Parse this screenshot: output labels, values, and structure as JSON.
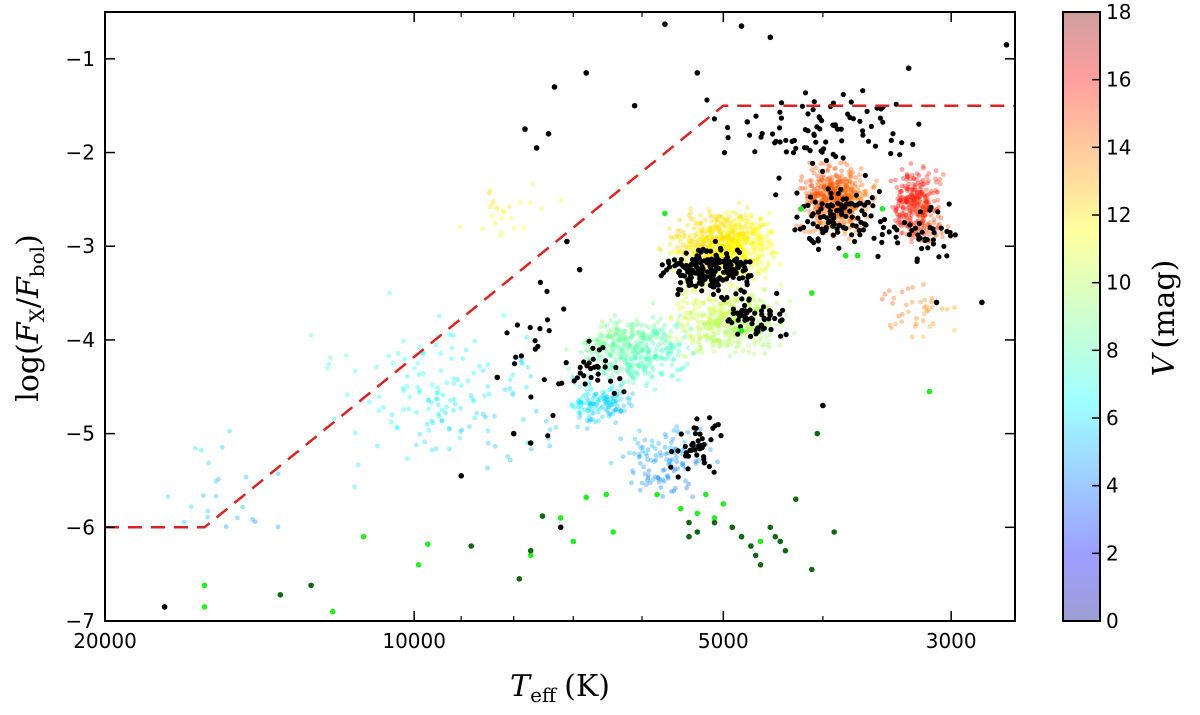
{
  "chart_data": {
    "type": "scatter",
    "title": "",
    "xlabel": {
      "main": "T",
      "sub": "eff",
      "unit": "(K)"
    },
    "ylabel": {
      "prefix": "log(",
      "a": "F",
      "a_sub": "X",
      "slash": "/",
      "b": "F",
      "b_sub": "bol",
      "suffix": ")"
    },
    "x_scale": "log-reversed",
    "xlim": [
      20000,
      2600
    ],
    "ylim": [
      -7,
      -0.5
    ],
    "x_ticks": [
      20000,
      10000,
      5000,
      3000
    ],
    "x_tick_labels": [
      "20000",
      "10000",
      "5000",
      "3000"
    ],
    "y_ticks": [
      -1,
      -2,
      -3,
      -4,
      -5,
      -6,
      -7
    ],
    "y_tick_labels": [
      "−1",
      "−2",
      "−3",
      "−4",
      "−5",
      "−6",
      "−7"
    ],
    "grid": false,
    "colorbar": {
      "label": {
        "main": "V",
        "unit": "(mag)"
      },
      "range": [
        0,
        18
      ],
      "ticks": [
        0,
        2,
        4,
        6,
        8,
        10,
        12,
        14,
        16,
        18
      ],
      "tick_labels": [
        "0",
        "2",
        "4",
        "6",
        "8",
        "10",
        "12",
        "14",
        "16",
        "18"
      ],
      "colormap": "jet"
    },
    "saturation_line": {
      "style": "dashed",
      "color": "#dd2222",
      "points": [
        [
          20000,
          -6
        ],
        [
          16000,
          -6
        ],
        [
          5000,
          -1.5
        ],
        [
          2600,
          -1.5
        ]
      ]
    },
    "series": [
      {
        "style": "colored-by-V",
        "clusters": [
          {
            "x": [
              3000,
              3500
            ],
            "y": [
              -3.1,
              -2.0
            ],
            "V": [
              14,
              16.5
            ],
            "count": 300
          },
          {
            "x": [
              3500,
              4300
            ],
            "y": [
              -3.0,
              -2.0
            ],
            "V": [
              13,
              15
            ],
            "count": 520
          },
          {
            "x": [
              4300,
              5800
            ],
            "y": [
              -3.5,
              -2.5
            ],
            "V": [
              10.5,
              12.5
            ],
            "count": 750
          },
          {
            "x": [
              4200,
              5800
            ],
            "y": [
              -4.3,
              -3.3
            ],
            "V": [
              9,
              11
            ],
            "count": 380
          },
          {
            "x": [
              5200,
              7200
            ],
            "y": [
              -4.6,
              -3.6
            ],
            "V": [
              7,
              9.5
            ],
            "count": 380
          },
          {
            "x": [
              6000,
              7200
            ],
            "y": [
              -5.0,
              -4.4
            ],
            "V": [
              5,
              7
            ],
            "count": 130
          },
          {
            "x": [
              5000,
              6500
            ],
            "y": [
              -5.8,
              -4.8
            ],
            "V": [
              3.5,
              6
            ],
            "count": 110
          },
          {
            "x": [
              6800,
              13000
            ],
            "y": [
              -5.8,
              -3.4
            ],
            "V": [
              4.5,
              8.5
            ],
            "count": 150
          },
          {
            "x": [
              13000,
              18000
            ],
            "y": [
              -6.4,
              -4.8
            ],
            "V": [
              4,
              7
            ],
            "count": 22
          },
          {
            "x": [
              7000,
              9500
            ],
            "y": [
              -3.0,
              -2.2
            ],
            "V": [
              10,
              13
            ],
            "count": 25
          },
          {
            "x": [
              2900,
              3600
            ],
            "y": [
              -4.2,
              -3.2
            ],
            "V": [
              12,
              15
            ],
            "count": 40
          }
        ]
      },
      {
        "style": "black",
        "color": "#000000",
        "clusters": [
          {
            "x": [
              4500,
              5900
            ],
            "y": [
              -3.6,
              -2.9
            ],
            "count": 210
          },
          {
            "x": [
              3300,
              4500
            ],
            "y": [
              -3.2,
              -2.2
            ],
            "count": 110
          },
          {
            "x": [
              4200,
              5200
            ],
            "y": [
              -4.1,
              -3.4
            ],
            "count": 60
          },
          {
            "x": [
              4900,
              5700
            ],
            "y": [
              -5.6,
              -4.7
            ],
            "count": 40
          },
          {
            "x": [
              6200,
              7200
            ],
            "y": [
              -4.8,
              -3.8
            ],
            "count": 28
          },
          {
            "x": [
              3000,
              5500
            ],
            "y": [
              -2.4,
              -1.1
            ],
            "count": 90
          },
          {
            "x": [
              2900,
              3500
            ],
            "y": [
              -3.3,
              -2.4
            ],
            "count": 40
          },
          {
            "x": [
              6500,
              9000
            ],
            "y": [
              -5.5,
              -3.0
            ],
            "count": 22
          }
        ],
        "points": [
          [
            17500,
            -6.85
          ],
          [
            9000,
            -5.45
          ],
          [
            8000,
            -5.0
          ],
          [
            7700,
            -5.1
          ],
          [
            7800,
            -1.75
          ],
          [
            7600,
            -1.95
          ],
          [
            7300,
            -1.3
          ],
          [
            6800,
            -1.15
          ],
          [
            7400,
            -1.8
          ],
          [
            7100,
            -2.95
          ],
          [
            6900,
            -3.25
          ],
          [
            5700,
            -0.63
          ],
          [
            4800,
            -0.65
          ],
          [
            4500,
            -0.77
          ],
          [
            3300,
            -1.1
          ],
          [
            2650,
            -0.85
          ],
          [
            6100,
            -1.5
          ],
          [
            5300,
            -1.15
          ],
          [
            3100,
            -3.6
          ],
          [
            2800,
            -3.6
          ],
          [
            4000,
            -4.7
          ],
          [
            8300,
            -4.4
          ],
          [
            7200,
            -6.0
          ]
        ]
      },
      {
        "style": "bright-green",
        "color": "#22ee22",
        "points": [
          [
            16000,
            -6.62
          ],
          [
            16000,
            -6.85
          ],
          [
            12000,
            -6.9
          ],
          [
            11200,
            -6.1
          ],
          [
            9700,
            -6.18
          ],
          [
            9900,
            -6.4
          ],
          [
            7700,
            -6.3
          ],
          [
            7200,
            -5.9
          ],
          [
            6800,
            -5.68
          ],
          [
            6500,
            -5.65
          ],
          [
            6400,
            -6.05
          ],
          [
            7000,
            -6.15
          ],
          [
            5500,
            -5.8
          ],
          [
            5300,
            -5.85
          ],
          [
            5100,
            -5.9
          ],
          [
            5000,
            -5.75
          ],
          [
            4900,
            -6.0
          ],
          [
            4800,
            -6.1
          ],
          [
            4700,
            -6.2
          ],
          [
            4600,
            -6.15
          ],
          [
            5800,
            -5.65
          ],
          [
            5200,
            -5.65
          ],
          [
            4200,
            -2.6
          ],
          [
            3500,
            -2.6
          ],
          [
            3800,
            -3.1
          ],
          [
            4100,
            -3.5
          ],
          [
            4800,
            -3.9
          ],
          [
            3150,
            -4.55
          ],
          [
            3700,
            -3.1
          ],
          [
            5700,
            -2.65
          ]
        ]
      },
      {
        "style": "dark-green",
        "color": "#116611",
        "points": [
          [
            13500,
            -6.72
          ],
          [
            12600,
            -6.62
          ],
          [
            8800,
            -6.2
          ],
          [
            7900,
            -6.55
          ],
          [
            7700,
            -6.25
          ],
          [
            7500,
            -5.88
          ],
          [
            5400,
            -5.95
          ],
          [
            5300,
            -6.05
          ],
          [
            5100,
            -5.95
          ],
          [
            4900,
            -6.0
          ],
          [
            4800,
            -6.1
          ],
          [
            4700,
            -6.2
          ],
          [
            4650,
            -6.3
          ],
          [
            4600,
            -6.4
          ],
          [
            4500,
            -6.0
          ],
          [
            4450,
            -6.1
          ],
          [
            4400,
            -6.15
          ],
          [
            4350,
            -6.25
          ],
          [
            4250,
            -5.7
          ],
          [
            4100,
            -6.45
          ],
          [
            3900,
            -6.05
          ],
          [
            4050,
            -5.0
          ],
          [
            5400,
            -6.1
          ]
        ]
      }
    ]
  }
}
